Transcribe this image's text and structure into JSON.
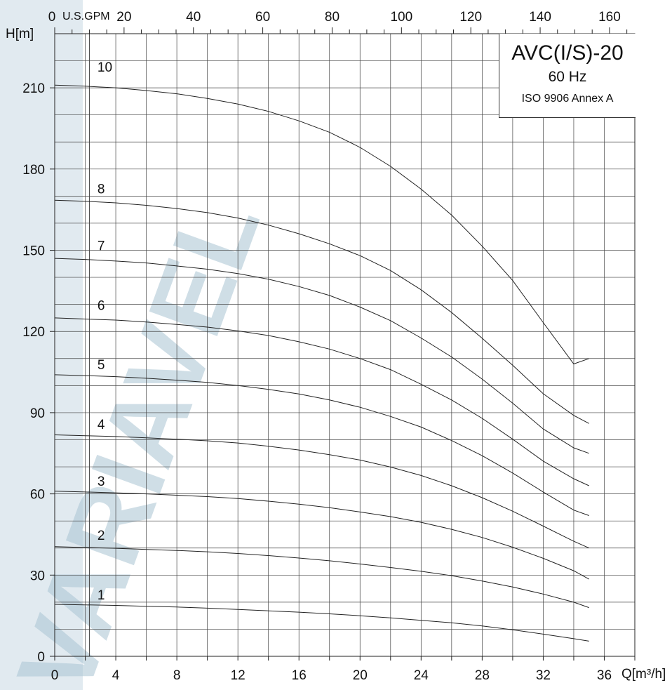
{
  "chart_data": {
    "type": "line",
    "title": "AVC(I/S)-20",
    "subtitle": "60 Hz",
    "note": "ISO 9906 Annex A",
    "watermark": "VARIAVEL",
    "xlabel": "Q[m³/h]",
    "ylabel": "H[m]",
    "x2label": "U.S.GPM",
    "xlim": [
      0,
      38
    ],
    "ylim": [
      0,
      230
    ],
    "x2lim": [
      0,
      167.3
    ],
    "xticks": [
      "0",
      "4",
      "8",
      "12",
      "16",
      "20",
      "24",
      "28",
      "32",
      "36"
    ],
    "xtick_values": [
      0,
      4,
      8,
      12,
      16,
      20,
      24,
      28,
      32,
      36
    ],
    "yticks": [
      "0",
      "30",
      "60",
      "90",
      "120",
      "150",
      "180",
      "210"
    ],
    "ytick_values": [
      0,
      30,
      60,
      90,
      120,
      150,
      180,
      210
    ],
    "x2ticks": [
      "0",
      "20",
      "40",
      "60",
      "80",
      "100",
      "120",
      "140",
      "160"
    ],
    "x2tick_values": [
      0,
      20,
      40,
      60,
      80,
      100,
      120,
      140,
      160
    ],
    "grid": true,
    "x": [
      0,
      2,
      4,
      6,
      8,
      10,
      12,
      14,
      16,
      18,
      20,
      22,
      24,
      26,
      28,
      30,
      32,
      34,
      35
    ],
    "series": [
      {
        "name": "1",
        "values": [
          19.2,
          19.0,
          18.8,
          18.5,
          18.2,
          17.8,
          17.3,
          16.8,
          16.3,
          15.7,
          15.0,
          14.2,
          13.3,
          12.4,
          11.2,
          9.8,
          8.2,
          6.5,
          5.6
        ]
      },
      {
        "name": "2",
        "values": [
          40.5,
          40.2,
          39.9,
          39.5,
          39.1,
          38.6,
          38.0,
          37.2,
          36.3,
          35.3,
          34.1,
          32.8,
          31.4,
          29.8,
          27.8,
          25.6,
          23.0,
          20.0,
          18.0
        ]
      },
      {
        "name": "3",
        "values": [
          61.0,
          60.7,
          60.4,
          60.0,
          59.5,
          59.0,
          58.3,
          57.3,
          56.2,
          54.9,
          53.3,
          51.6,
          49.5,
          46.9,
          43.9,
          40.3,
          36.2,
          31.6,
          28.5
        ]
      },
      {
        "name": "4",
        "values": [
          81.8,
          81.5,
          81.2,
          80.7,
          80.2,
          79.6,
          78.8,
          77.6,
          76.2,
          74.5,
          72.5,
          69.9,
          66.8,
          63.0,
          58.6,
          53.6,
          48.1,
          42.5,
          40.0
        ]
      },
      {
        "name": "5",
        "values": [
          104.0,
          103.7,
          103.3,
          102.7,
          102.0,
          101.2,
          100.0,
          98.6,
          96.9,
          94.7,
          92.0,
          88.6,
          84.7,
          79.7,
          74.1,
          67.7,
          60.7,
          54.0,
          52.0
        ]
      },
      {
        "name": "6",
        "values": [
          125.0,
          124.6,
          124.2,
          123.5,
          122.6,
          121.6,
          120.2,
          118.5,
          116.2,
          113.5,
          110.0,
          105.9,
          100.5,
          94.7,
          87.9,
          80.2,
          72.1,
          65.6,
          63.0
        ]
      },
      {
        "name": "7",
        "values": [
          147.0,
          146.6,
          146.0,
          145.3,
          144.2,
          143.0,
          141.4,
          139.3,
          136.6,
          133.3,
          129.0,
          124.0,
          117.6,
          110.6,
          102.4,
          93.5,
          84.0,
          77.0,
          75.0
        ]
      },
      {
        "name": "8",
        "values": [
          168.5,
          168.1,
          167.5,
          166.6,
          165.4,
          163.9,
          161.9,
          159.3,
          156.1,
          152.4,
          148.0,
          142.5,
          135.4,
          127.0,
          117.5,
          107.5,
          97.0,
          89.0,
          86.0
        ]
      },
      {
        "name": "10",
        "values": [
          211.0,
          210.6,
          210.0,
          209.0,
          207.8,
          206.1,
          204.0,
          201.3,
          197.8,
          193.6,
          188.0,
          181.0,
          172.6,
          163.0,
          151.5,
          138.8,
          123.3,
          108.0,
          110.0
        ]
      }
    ],
    "curve_labels": [
      {
        "text": "1",
        "x": 2.8,
        "y": 21
      },
      {
        "text": "2",
        "x": 2.8,
        "y": 43
      },
      {
        "text": "3",
        "x": 2.8,
        "y": 63
      },
      {
        "text": "4",
        "x": 2.8,
        "y": 84
      },
      {
        "text": "5",
        "x": 2.8,
        "y": 106
      },
      {
        "text": "6",
        "x": 2.8,
        "y": 128
      },
      {
        "text": "7",
        "x": 2.8,
        "y": 150
      },
      {
        "text": "8",
        "x": 2.8,
        "y": 171
      },
      {
        "text": "10",
        "x": 2.8,
        "y": 216
      }
    ],
    "colors": {
      "curve": "#222222",
      "grid": "#444444",
      "watermark": "#a9c4d3"
    }
  }
}
